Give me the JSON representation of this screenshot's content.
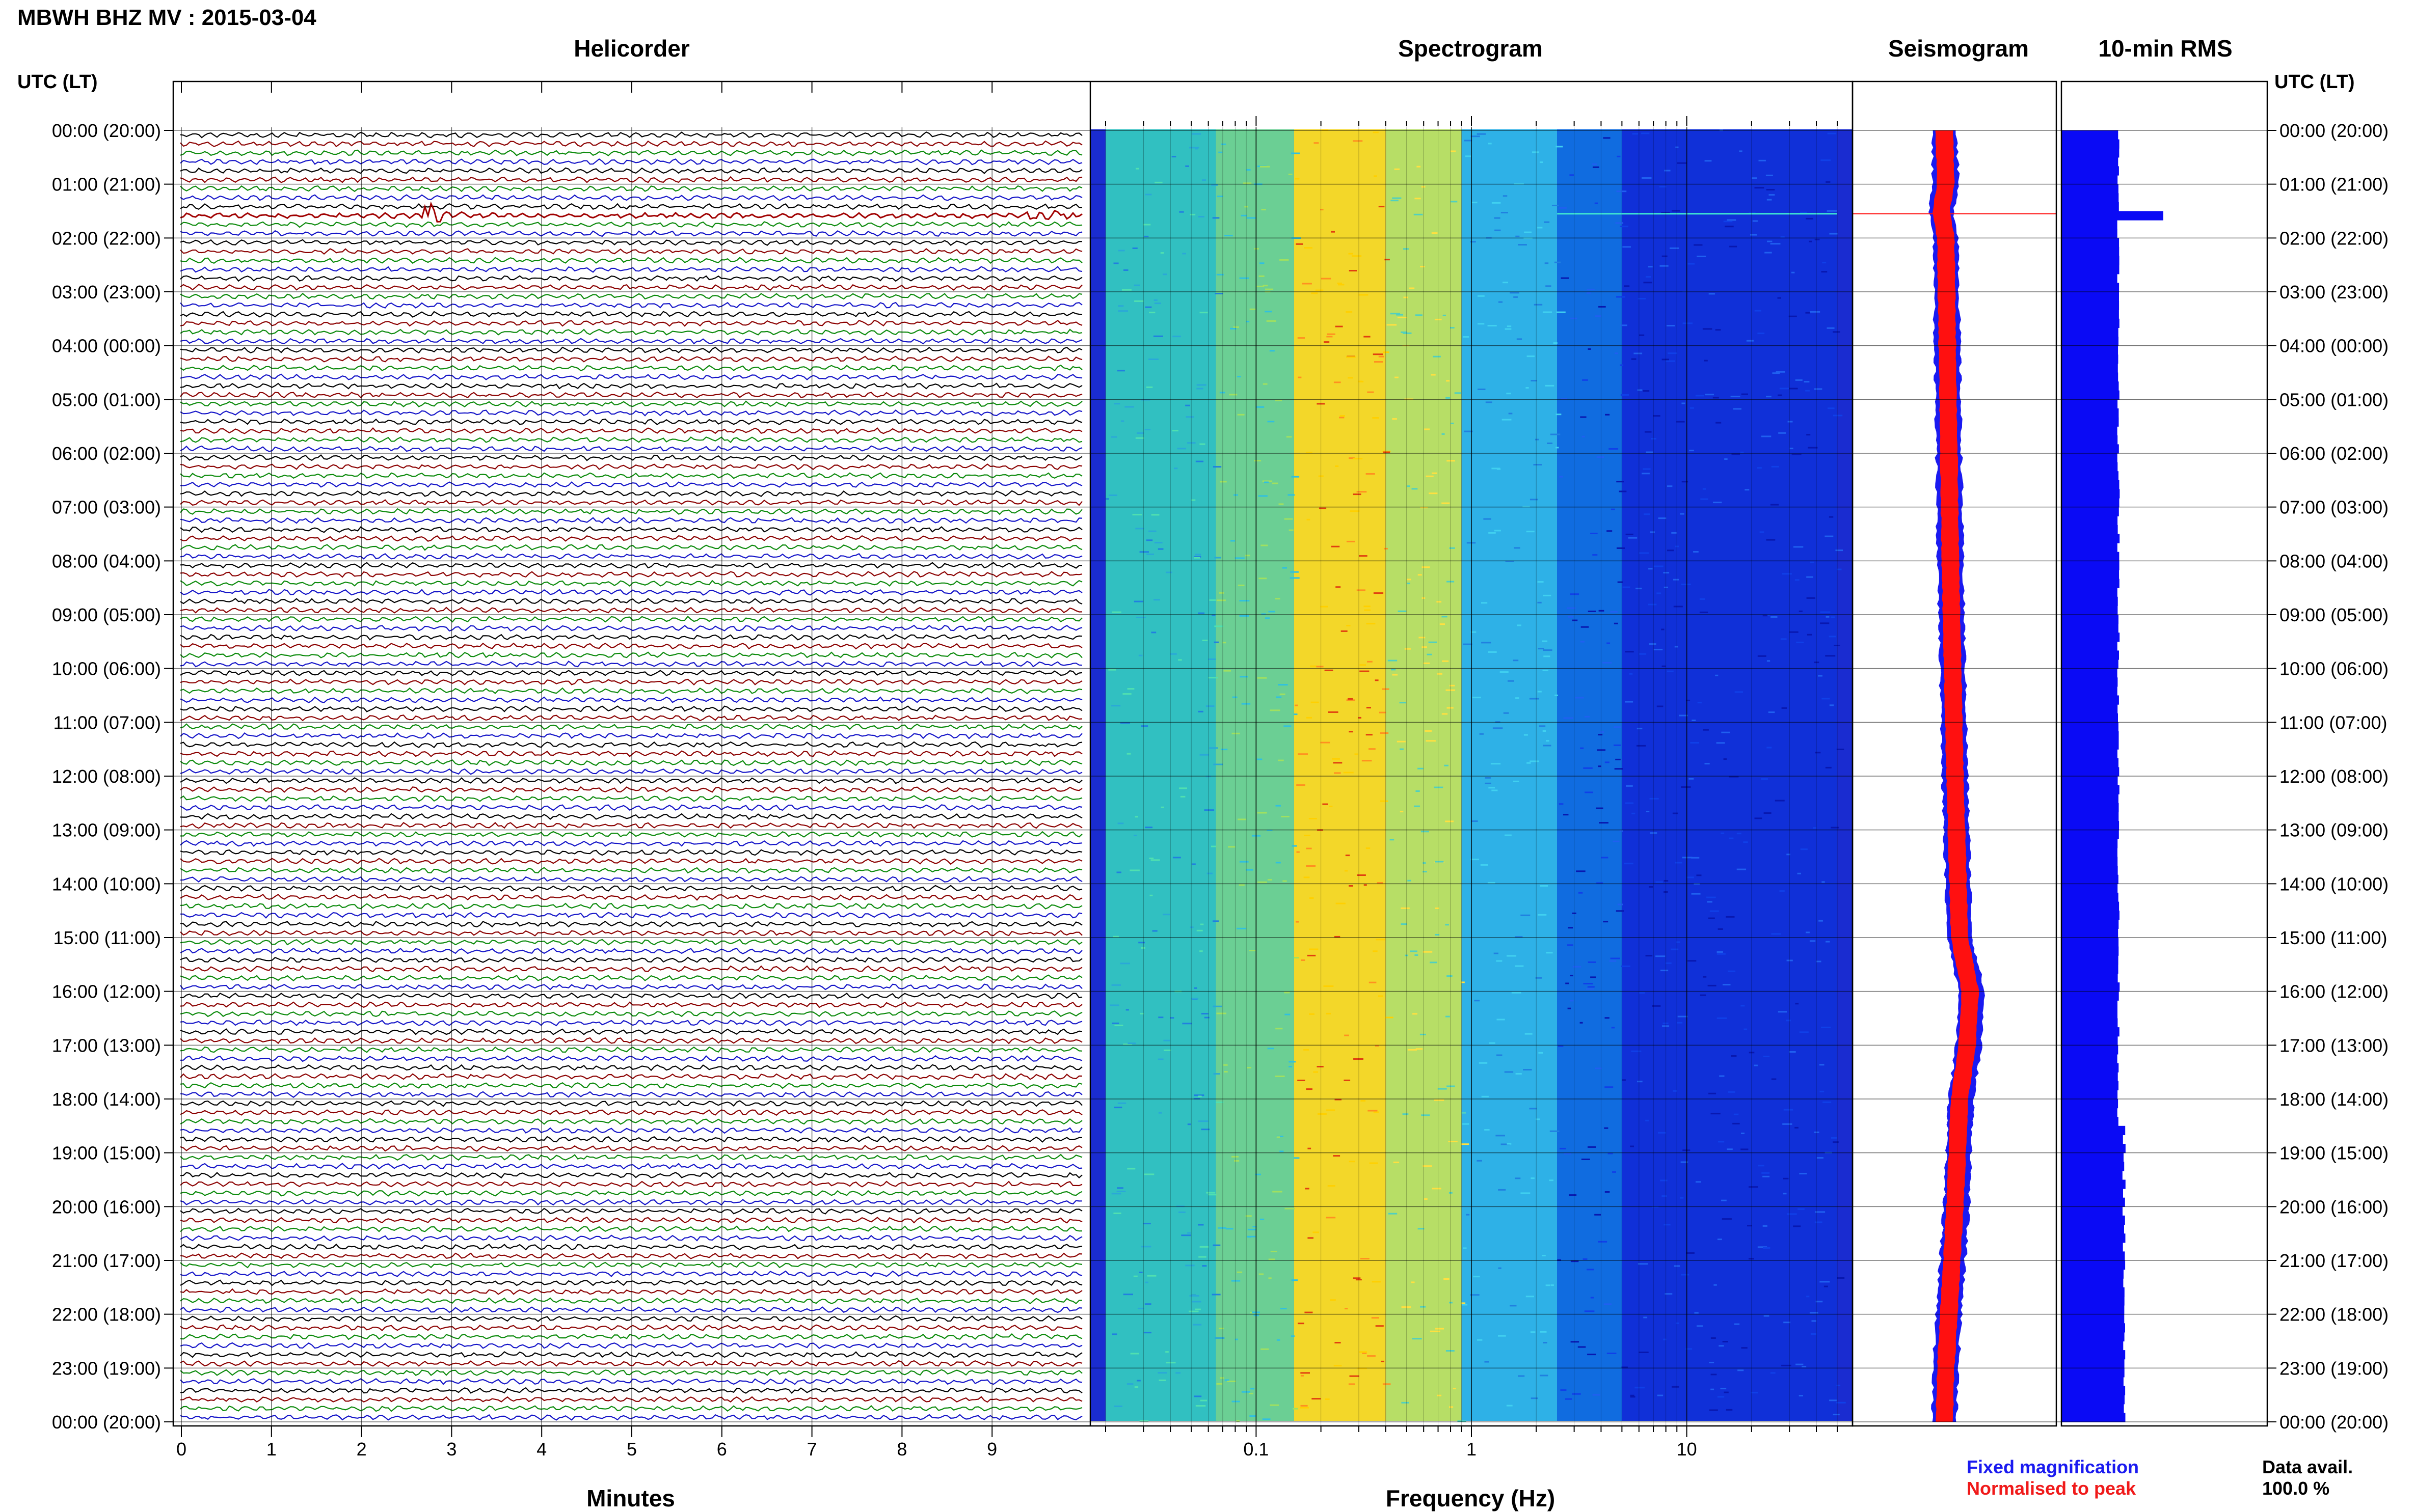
{
  "header": {
    "title": "MBWH BHZ MV : 2015-03-04"
  },
  "panels": {
    "helicorder": "Helicorder",
    "spectrogram": "Spectrogram",
    "seismogram": "Seismogram",
    "rms": "10-min RMS"
  },
  "time_axis_title": "UTC (LT)",
  "time_labels": [
    "00:00 (20:00)",
    "01:00 (21:00)",
    "02:00 (22:00)",
    "03:00 (23:00)",
    "04:00 (00:00)",
    "05:00 (01:00)",
    "06:00 (02:00)",
    "07:00 (03:00)",
    "08:00 (04:00)",
    "09:00 (05:00)",
    "10:00 (06:00)",
    "11:00 (07:00)",
    "12:00 (08:00)",
    "13:00 (09:00)",
    "14:00 (10:00)",
    "15:00 (11:00)",
    "16:00 (12:00)",
    "17:00 (13:00)",
    "18:00 (14:00)",
    "19:00 (15:00)",
    "20:00 (16:00)",
    "21:00 (17:00)",
    "22:00 (18:00)",
    "23:00 (19:00)",
    "00:00 (20:00)"
  ],
  "legend": {
    "fixed": "Fixed magnification",
    "normalised": "Normalised to peak"
  },
  "availability": {
    "label": "Data avail.",
    "value": "100.0 %"
  },
  "colors": {
    "trace_cycle": [
      "#000000",
      "#8b0000",
      "#0b8a0b",
      "#1414c8"
    ],
    "event": "#a00000",
    "rms_bar": "#0a0af5",
    "seis_fixed": "#1a1af0",
    "seis_norm": "#ff1010"
  },
  "chart_data": [
    {
      "type": "line",
      "title": "Helicorder",
      "xlabel": "Minutes",
      "x_ticks": [
        0,
        1,
        2,
        3,
        4,
        5,
        6,
        7,
        8,
        9
      ],
      "xlim": [
        0,
        10
      ],
      "lines_per_hour": 6,
      "hours": 24,
      "event": {
        "hour": 1,
        "line": 3,
        "minute": 2.75
      }
    },
    {
      "type": "heatmap",
      "title": "Spectrogram",
      "xlabel": "Frequency (Hz)",
      "x_scale": "log",
      "x_ticks": [
        0.1,
        1,
        10
      ],
      "xlim": [
        0.02,
        50
      ],
      "band_colors": [
        {
          "f0": 0.02,
          "f1": 0.065,
          "color": "#33c8c0"
        },
        {
          "f0": 0.065,
          "f1": 0.15,
          "color": "#70d890"
        },
        {
          "f0": 0.15,
          "f1": 0.4,
          "color": "#ffe020"
        },
        {
          "f0": 0.4,
          "f1": 0.9,
          "color": "#c0e860"
        },
        {
          "f0": 0.9,
          "f1": 2.5,
          "color": "#2fb8e8"
        },
        {
          "f0": 2.5,
          "f1": 5,
          "color": "#1070e0"
        },
        {
          "f0": 5,
          "f1": 50,
          "color": "#1030d8"
        }
      ]
    },
    {
      "type": "area",
      "title": "Seismogram",
      "series": [
        {
          "name": "Fixed magnification",
          "hour": [
            0,
            1,
            1.5,
            2,
            4,
            8,
            12,
            15,
            16,
            17,
            18,
            20,
            22,
            23,
            24
          ],
          "offset": [
            0,
            0.05,
            -0.1,
            0.05,
            0.1,
            0.2,
            0.35,
            0.5,
            0.9,
            0.8,
            0.55,
            0.4,
            0.15,
            0.05,
            0
          ]
        },
        {
          "name": "Normalised to peak",
          "hour": [
            0,
            1,
            1.5,
            2,
            4,
            8,
            12,
            15,
            16,
            17,
            18,
            20,
            22,
            23,
            24
          ],
          "offset": [
            0,
            0.05,
            -0.1,
            0.05,
            0.1,
            0.2,
            0.35,
            0.5,
            0.85,
            0.75,
            0.5,
            0.35,
            0.15,
            0.05,
            0
          ]
        }
      ]
    },
    {
      "type": "bar",
      "title": "10-min RMS",
      "orientation": "horizontal",
      "bins": 144,
      "base_level": 1.0,
      "spike": {
        "bin": 9,
        "value": 1.55
      },
      "late_level": 1.06
    }
  ]
}
